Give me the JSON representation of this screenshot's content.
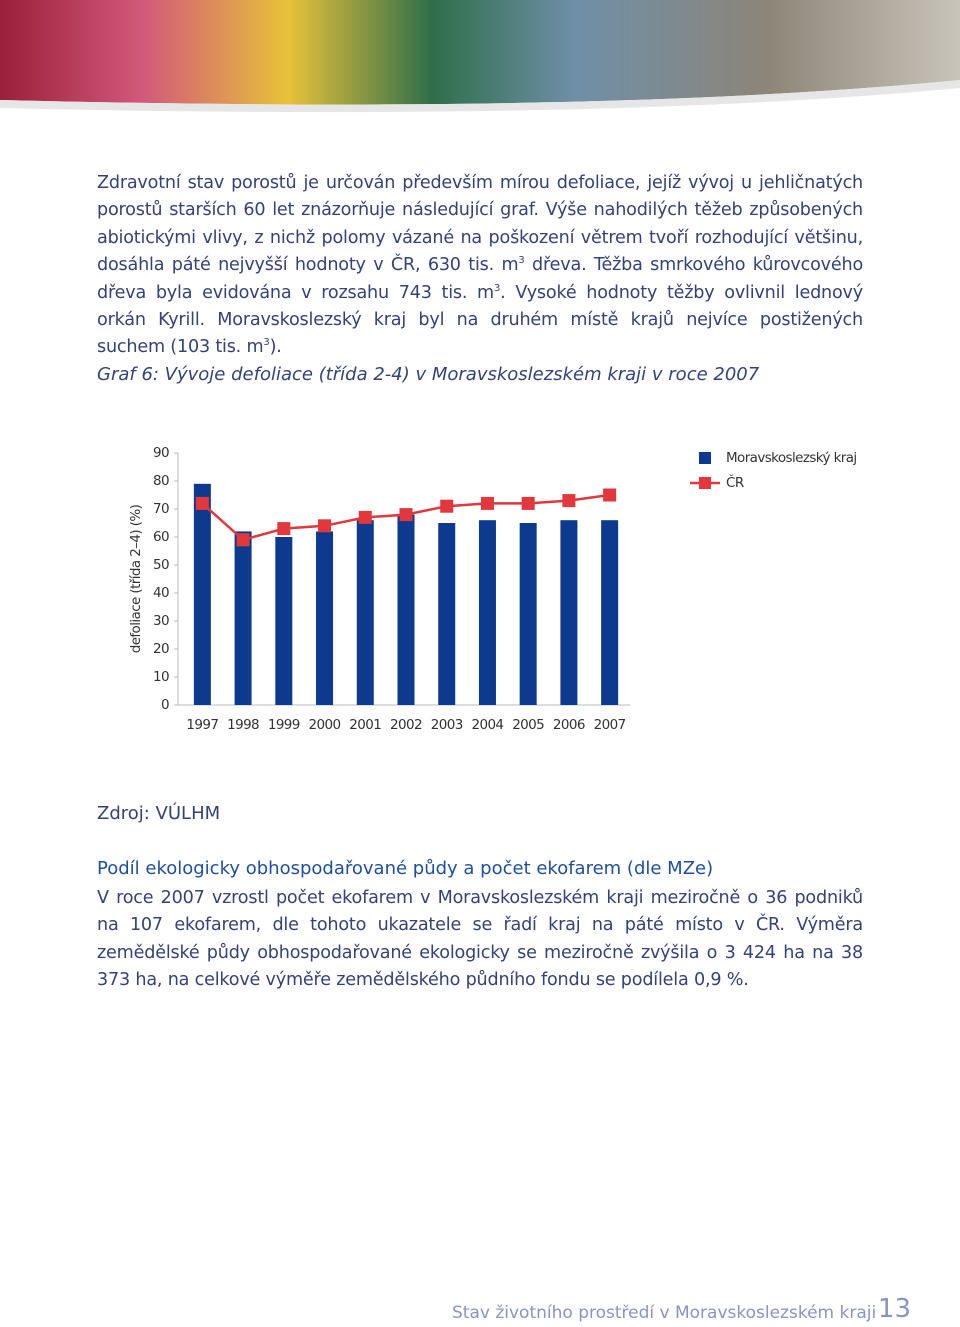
{
  "intro_parts": [
    {
      "text": "Zdravotní stav porostů je určován především mírou defoliace, jejíž vývoj u jehličnatých porostů starších 60 let znázorňuje následující graf. Výše nahodilých těžeb způsobených abiotickými vlivy, z nichž polomy vázané na poškození větrem tvoří rozhodující většinu, dosáhla páté nejvyšší hodnoty v ČR, 630 tis. m"
    },
    {
      "sup": "3"
    },
    {
      "text": " dřeva. Těžba smrkového kůrovcového dřeva byla evidována v rozsahu 743 tis. m"
    },
    {
      "sup": "3"
    },
    {
      "text": ". Vysoké hodnoty těžby ovlivnil lednový orkán Kyrill. Moravskoslezský kraj byl na druhém místě krajů nejvíce postižených suchem (103 tis. m"
    },
    {
      "sup": "3"
    },
    {
      "text": ")."
    }
  ],
  "chart_data": {
    "type": "bar",
    "title": "Graf 6: Vývoje defoliace (třída 2-4) v Moravskoslezském kraji v roce 2007",
    "y_label": "defoliace (třída 2–4) (%)",
    "categories": [
      "1997",
      "1998",
      "1999",
      "2000",
      "2001",
      "2002",
      "2003",
      "2004",
      "2005",
      "2006",
      "2007"
    ],
    "series": [
      {
        "name": "Moravskoslezský kraj",
        "type": "bar",
        "color": "#0d3a8e",
        "values": [
          79,
          62,
          60,
          62,
          66,
          68,
          65,
          66,
          65,
          66,
          66
        ]
      },
      {
        "name": "ČR",
        "type": "line",
        "color": "#e2373c",
        "values": [
          72,
          59,
          63,
          64,
          67,
          68,
          71,
          72,
          72,
          73,
          75
        ]
      }
    ],
    "ylim": [
      0,
      90
    ],
    "yticks": [
      0,
      10,
      20,
      30,
      40,
      50,
      60,
      70,
      80,
      90
    ],
    "legend": "right"
  },
  "source": "Zdroj: VÚLHM",
  "section": {
    "heading": "Podíl ekologicky obhospodařované půdy a počet ekofarem (dle MZe)",
    "text": "V roce 2007 vzrostl počet ekofarem v Moravskoslezském kraji meziročně o 36 podniků na 107 ekofarem, dle tohoto ukazatele se řadí kraj na páté místo v ČR. Výměra zemědělské půdy obhospodařované ekologicky se meziročně zvýšila o 3 424 ha na 38 373 ha, na celkové výměře zemědělského půdního fondu se podílela 0,9 %."
  },
  "footer": {
    "title": "Stav životního prostředí v Moravskoslezském kraji",
    "page": "13"
  }
}
